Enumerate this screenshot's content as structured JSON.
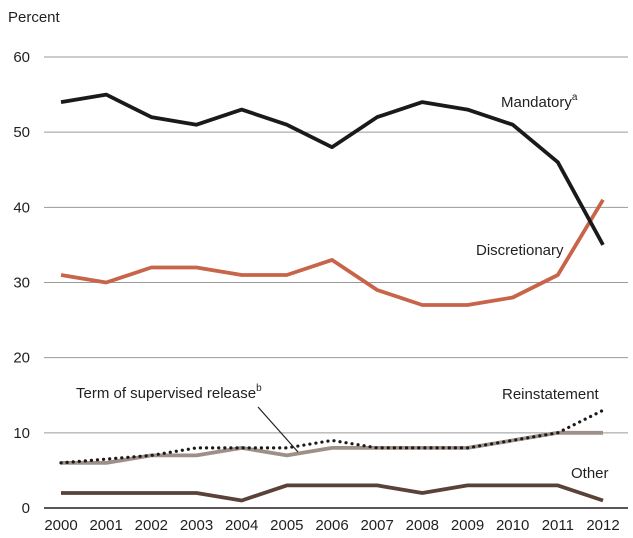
{
  "chart_data": {
    "type": "line",
    "ylabel": "Percent",
    "ylim": [
      0,
      60
    ],
    "yticks": [
      0,
      10,
      20,
      30,
      40,
      50,
      60
    ],
    "x": [
      "2000",
      "2001",
      "2002",
      "2003",
      "2004",
      "2005",
      "2006",
      "2007",
      "2008",
      "2009",
      "2010",
      "2011",
      "2012"
    ],
    "grid": "horizontal",
    "series": [
      {
        "key": "mandatory",
        "name": "Mandatory",
        "superscript": "a",
        "color": "#1a1a1a",
        "style": "solid",
        "values": [
          54,
          55,
          52,
          51,
          53,
          51,
          48,
          52,
          54,
          53,
          51,
          46,
          35
        ]
      },
      {
        "key": "discretionary",
        "name": "Discretionary",
        "color": "#c8644a",
        "style": "solid",
        "values": [
          31,
          30,
          32,
          32,
          31,
          31,
          33,
          29,
          27,
          27,
          28,
          31,
          41
        ]
      },
      {
        "key": "term",
        "name": "Term of supervised release",
        "superscript": "b",
        "color": "#1a1a1a",
        "style": "dotted",
        "values": [
          6,
          6.5,
          7,
          8,
          8,
          8,
          9,
          8,
          8,
          8,
          9,
          10,
          13
        ]
      },
      {
        "key": "reinstatement",
        "name": "Reinstatement",
        "color": "#9e9088",
        "style": "solid",
        "values": [
          6,
          6,
          7,
          7,
          8,
          7,
          8,
          8,
          8,
          8,
          9,
          10,
          10
        ]
      },
      {
        "key": "other",
        "name": "Other",
        "color": "#5a4239",
        "style": "solid",
        "values": [
          2,
          2,
          2,
          2,
          1,
          3,
          3,
          3,
          2,
          3,
          3,
          3,
          1
        ]
      }
    ]
  }
}
